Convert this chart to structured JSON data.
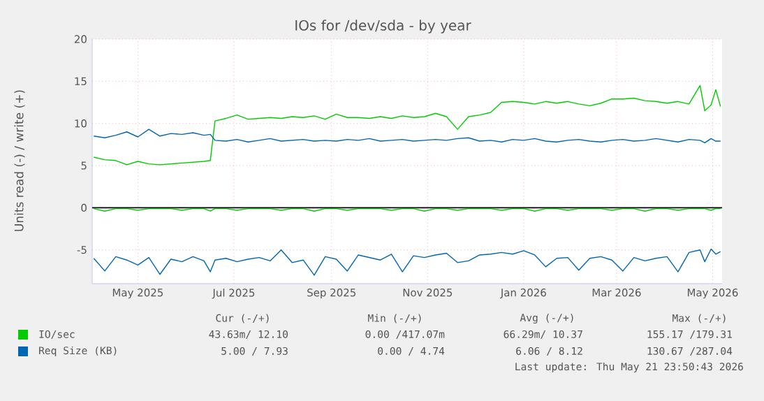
{
  "chart_data": {
    "type": "line",
    "title": "IOs for /dev/sda - by year",
    "ylabel": "Units read (-) / write (+)",
    "x": [
      "2025-04-17",
      "2025-04-24",
      "2025-05-01",
      "2025-05-08",
      "2025-05-15",
      "2025-05-22",
      "2025-05-29",
      "2025-06-05",
      "2025-06-12",
      "2025-06-19",
      "2025-06-26",
      "2025-06-30",
      "2025-07-03",
      "2025-07-10",
      "2025-07-17",
      "2025-07-24",
      "2025-07-31",
      "2025-08-07",
      "2025-08-14",
      "2025-08-21",
      "2025-08-28",
      "2025-09-04",
      "2025-09-11",
      "2025-09-18",
      "2025-09-25",
      "2025-10-02",
      "2025-10-09",
      "2025-10-16",
      "2025-10-23",
      "2025-10-30",
      "2025-11-06",
      "2025-11-13",
      "2025-11-20",
      "2025-11-27",
      "2025-12-04",
      "2025-12-11",
      "2025-12-18",
      "2025-12-25",
      "2026-01-01",
      "2026-01-08",
      "2026-01-15",
      "2026-01-22",
      "2026-01-29",
      "2026-02-05",
      "2026-02-12",
      "2026-02-19",
      "2026-02-26",
      "2026-03-05",
      "2026-03-12",
      "2026-03-19",
      "2026-03-26",
      "2026-04-02",
      "2026-04-09",
      "2026-04-16",
      "2026-04-23",
      "2026-04-30",
      "2026-05-07",
      "2026-05-10",
      "2026-05-14",
      "2026-05-17",
      "2026-05-20"
    ],
    "series": [
      {
        "name": "IO/sec",
        "color": "#00cc00",
        "values": [
          6.0,
          5.7,
          5.6,
          5.1,
          5.5,
          5.2,
          5.1,
          5.2,
          5.3,
          5.4,
          5.5,
          5.6,
          10.3,
          10.6,
          11.0,
          10.5,
          10.6,
          10.7,
          10.6,
          10.8,
          10.7,
          10.9,
          10.5,
          11.1,
          10.7,
          10.7,
          10.6,
          10.8,
          10.6,
          10.9,
          10.7,
          10.8,
          11.2,
          10.8,
          9.3,
          10.8,
          11.0,
          11.3,
          12.5,
          12.6,
          12.5,
          12.3,
          12.6,
          12.4,
          12.6,
          12.3,
          12.1,
          12.4,
          12.9,
          12.9,
          13.0,
          12.7,
          12.6,
          12.4,
          12.6,
          12.3,
          14.5,
          11.5,
          12.2,
          14.0,
          12.0
        ]
      },
      {
        "color": "#00cc00",
        "values": [
          -0.1,
          -0.4,
          -0.1,
          -0.1,
          -0.3,
          -0.1,
          -0.1,
          -0.1,
          -0.3,
          -0.1,
          -0.1,
          -0.4,
          -0.1,
          -0.1,
          -0.3,
          -0.1,
          -0.1,
          -0.1,
          -0.3,
          -0.1,
          -0.1,
          -0.4,
          -0.1,
          -0.1,
          -0.3,
          -0.1,
          -0.1,
          -0.1,
          -0.3,
          -0.1,
          -0.1,
          -0.4,
          -0.1,
          -0.1,
          -0.3,
          -0.1,
          -0.1,
          -0.1,
          -0.3,
          -0.1,
          -0.1,
          -0.4,
          -0.1,
          -0.1,
          -0.3,
          -0.1,
          -0.1,
          -0.1,
          -0.3,
          -0.1,
          -0.1,
          -0.4,
          -0.1,
          -0.1,
          -0.3,
          -0.1,
          -0.1,
          -0.1,
          -0.3,
          -0.1,
          -0.1
        ]
      },
      {
        "name": "Req Size (KB)",
        "color": "#0066b3",
        "values": [
          8.5,
          8.3,
          8.6,
          9.0,
          8.4,
          9.3,
          8.5,
          8.8,
          8.7,
          8.9,
          8.6,
          8.7,
          8.0,
          7.9,
          8.1,
          7.8,
          8.0,
          8.2,
          7.9,
          8.0,
          8.1,
          7.9,
          8.0,
          7.9,
          8.1,
          8.0,
          8.2,
          7.9,
          8.0,
          8.1,
          7.9,
          8.0,
          8.1,
          8.0,
          8.2,
          8.3,
          7.9,
          8.0,
          7.8,
          8.1,
          8.0,
          8.2,
          7.9,
          7.8,
          8.0,
          8.1,
          7.9,
          7.8,
          8.0,
          8.1,
          7.9,
          8.0,
          8.2,
          8.0,
          7.8,
          8.1,
          8.0,
          7.7,
          8.2,
          7.9,
          7.9
        ]
      },
      {
        "color": "#0066b3",
        "values": [
          -6.0,
          -7.5,
          -5.8,
          -6.2,
          -6.8,
          -5.9,
          -7.9,
          -6.1,
          -6.4,
          -5.8,
          -6.3,
          -7.6,
          -6.2,
          -6.0,
          -6.4,
          -6.1,
          -5.9,
          -6.3,
          -5.0,
          -6.5,
          -6.2,
          -8.0,
          -5.8,
          -6.1,
          -7.5,
          -5.6,
          -5.9,
          -6.2,
          -5.5,
          -7.6,
          -5.7,
          -5.9,
          -5.6,
          -5.4,
          -6.5,
          -6.3,
          -5.6,
          -5.5,
          -5.3,
          -5.5,
          -5.1,
          -5.6,
          -7.0,
          -6.0,
          -5.9,
          -7.4,
          -6.0,
          -5.8,
          -6.2,
          -7.5,
          -5.9,
          -6.3,
          -6.0,
          -5.8,
          -7.6,
          -5.3,
          -5.0,
          -6.4,
          -4.9,
          -5.5,
          -5.2
        ]
      }
    ],
    "xlim": [
      "2025-04-16",
      "2026-05-21"
    ],
    "xticks": [
      {
        "value": "2025-05-15",
        "label": "May 2025"
      },
      {
        "value": "2025-07-15",
        "label": "Jul 2025"
      },
      {
        "value": "2025-09-15",
        "label": "Sep 2025"
      },
      {
        "value": "2025-11-15",
        "label": "Nov 2025"
      },
      {
        "value": "2026-01-15",
        "label": "Jan 2026"
      },
      {
        "value": "2026-03-15",
        "label": "Mar 2026"
      },
      {
        "value": "2026-05-15",
        "label": "May 2026"
      }
    ],
    "ylim": [
      -9,
      20
    ],
    "yticks": [
      -5,
      0,
      5,
      10,
      15,
      20
    ],
    "grid": true,
    "legend": "bottom",
    "ref_lines": [
      {
        "axis": "y",
        "value": 0,
        "color": "#000000"
      }
    ],
    "annotations": [
      "Cur (-/+)",
      "Min (-/+)",
      "Avg (-/+)",
      "Max (-/+)",
      "43.63m/ 12.10",
      "0.00 /417.07m",
      "66.29m/ 10.37",
      "155.17 /179.31",
      "5.00 /  7.93",
      "0.00 /  4.74",
      "6.06 /  8.12",
      "130.67 /287.04",
      "Last update: Thu May 21 23:50:43 2026"
    ]
  }
}
